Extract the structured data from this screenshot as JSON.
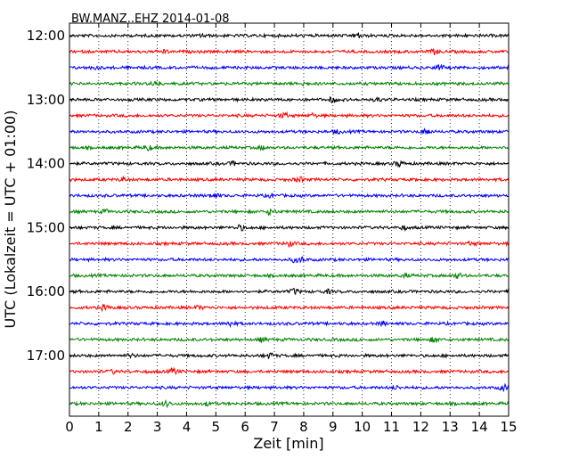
{
  "chart_data": {
    "type": "line",
    "title": "BW.MANZ..EHZ 2014-01-08",
    "xlabel": "Zeit  [min]",
    "ylabel": "UTC (Lokalzeit = UTC + 01:00)",
    "x_range": [
      0,
      15
    ],
    "x_ticks": [
      "0",
      "1",
      "2",
      "3",
      "4",
      "5",
      "6",
      "7",
      "8",
      "9",
      "10",
      "11",
      "12",
      "13",
      "14",
      "15"
    ],
    "y_tick_labels": [
      "12:00",
      "13:00",
      "14:00",
      "15:00",
      "16:00",
      "17:00"
    ],
    "grid": "vertical dotted",
    "trace_colors": [
      "#000000",
      "#ff0000",
      "#0000ff",
      "#008000"
    ],
    "trace_start_times": [
      "12:00",
      "12:15",
      "12:30",
      "12:45",
      "13:00",
      "13:15",
      "13:30",
      "13:45",
      "14:00",
      "14:15",
      "14:30",
      "14:45",
      "15:00",
      "15:15",
      "15:30",
      "15:45",
      "16:00",
      "16:15",
      "16:30",
      "16:45",
      "17:00",
      "17:15",
      "17:30",
      "17:45"
    ]
  }
}
